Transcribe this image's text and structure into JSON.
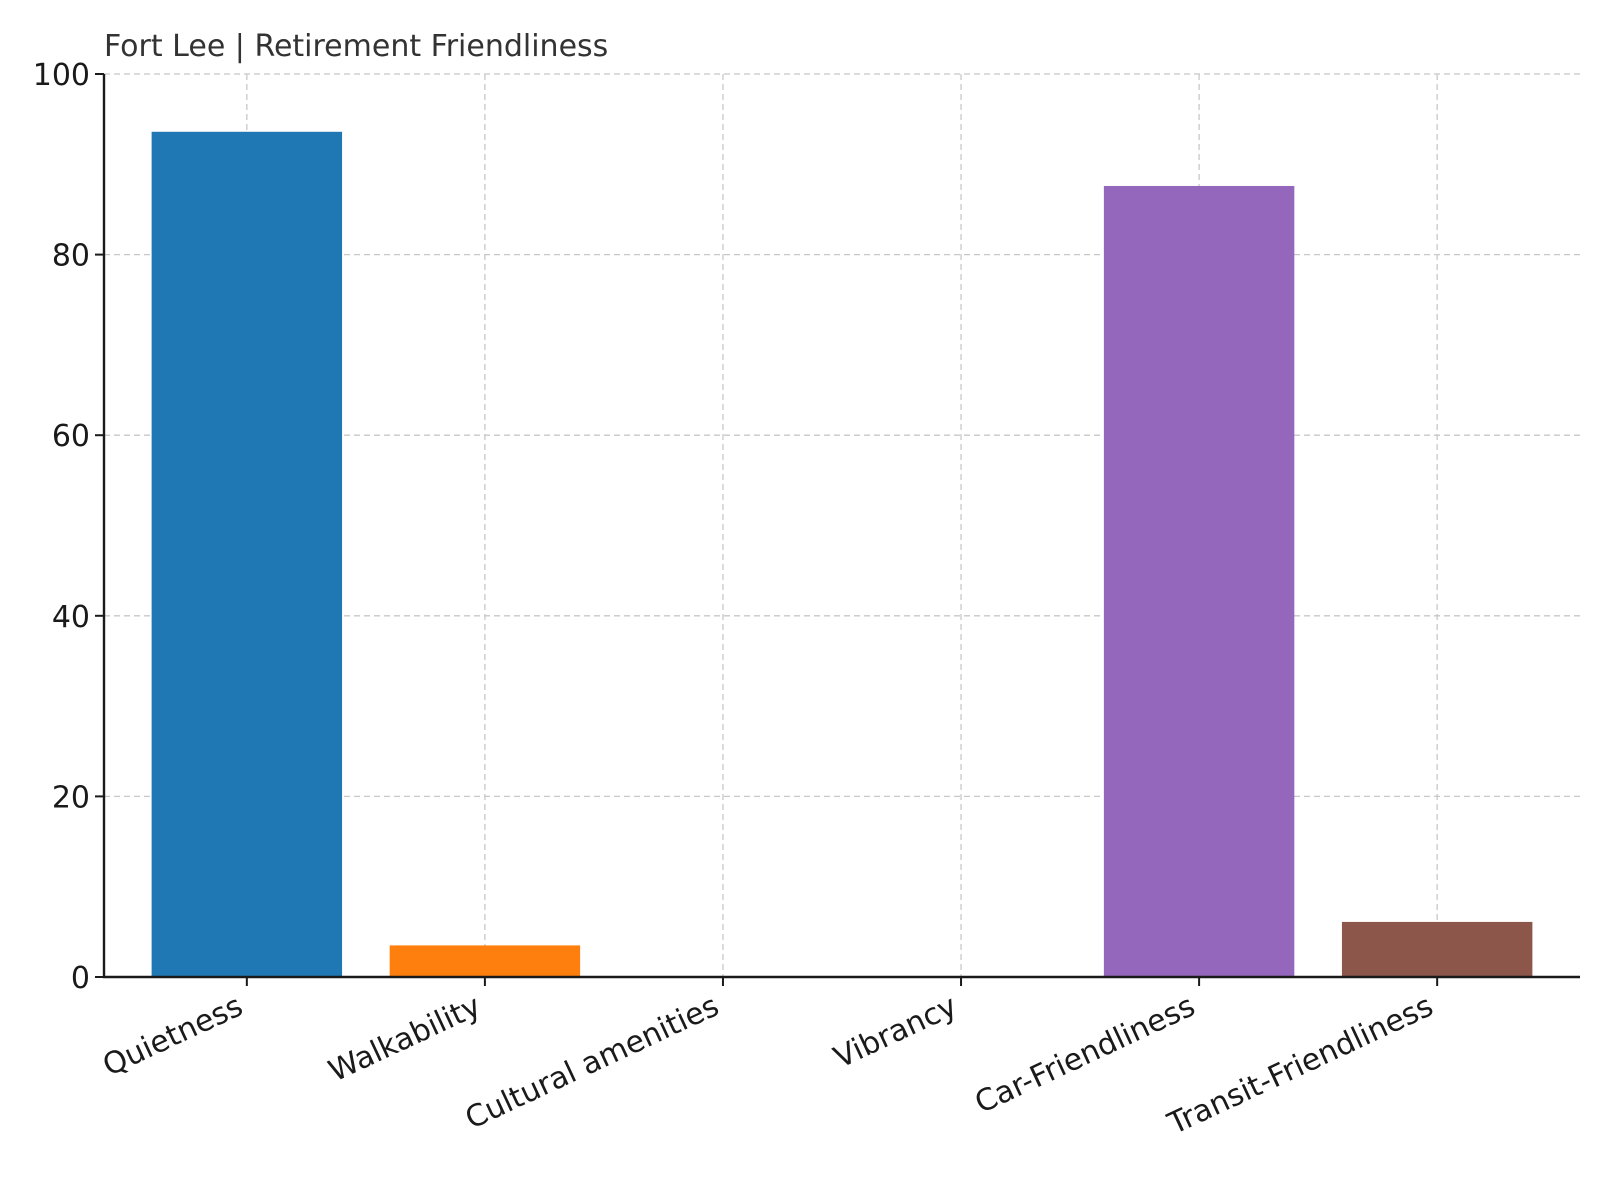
{
  "chart_data": {
    "type": "bar",
    "title": "Fort Lee | Retirement Friendliness",
    "xlabel": "",
    "ylabel": "",
    "ylim": [
      0,
      100
    ],
    "yticks": [
      0,
      20,
      40,
      60,
      80,
      100
    ],
    "grid": true,
    "legend": "none",
    "categories": [
      "Quietness",
      "Walkability",
      "Cultural amenities",
      "Vibrancy",
      "Car-Friendliness",
      "Transit-Friendliness"
    ],
    "values": [
      93.6,
      3.5,
      0,
      0,
      87.6,
      6.1
    ],
    "colors": [
      "#1f77b4",
      "#ff7f0e",
      "#2ca02c",
      "#d62728",
      "#9467bd",
      "#8c564b"
    ]
  }
}
